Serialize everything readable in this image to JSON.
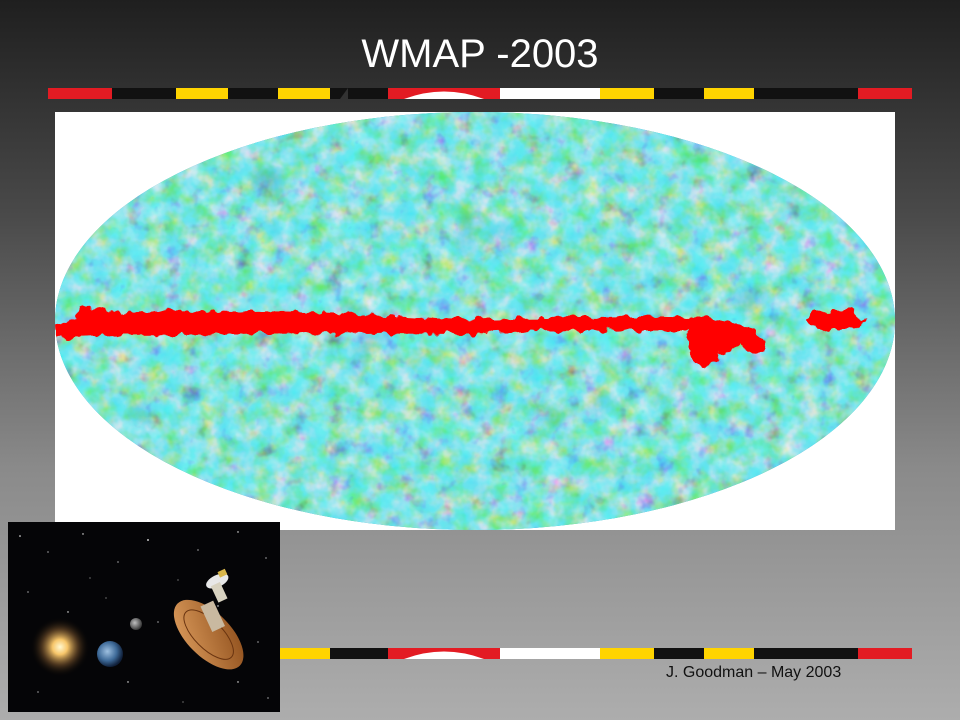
{
  "slide": {
    "title": "WMAP -2003",
    "credit": "J. Goodman – May 2003"
  },
  "images": {
    "sky_map": {
      "description_icon": "cmb-sky-map"
    },
    "satellite_inset": {
      "description_icon": "wmap-satellite"
    }
  },
  "colors": {
    "flag_red": "#e31b23",
    "flag_yellow": "#ffd400",
    "flag_black": "#111111",
    "flag_white": "#ffffff",
    "galactic_plane": "#ff0000",
    "cmb_blue": "#1a35c8",
    "cmb_cyan": "#23b8d8",
    "cmb_green": "#37c84a"
  }
}
